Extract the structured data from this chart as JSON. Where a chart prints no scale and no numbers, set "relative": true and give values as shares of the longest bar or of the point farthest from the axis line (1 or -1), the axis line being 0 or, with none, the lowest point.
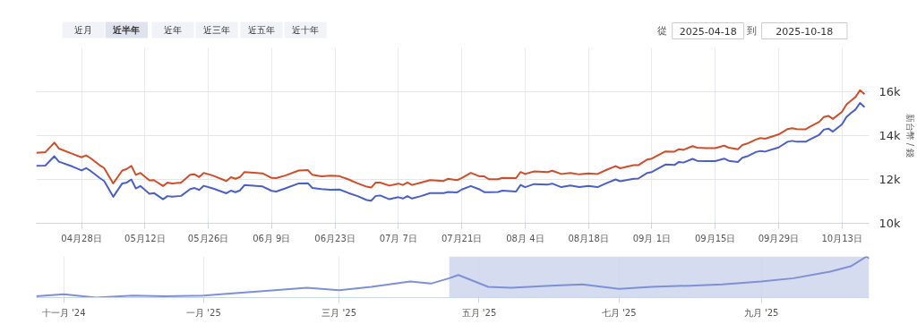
{
  "chart_data": [
    {
      "type": "line",
      "ylabel": "新台幣 / 錢",
      "annotations": [
        "近月",
        "近半年",
        "近年",
        "近三年",
        "近五年",
        "近十年",
        "從",
        "2025-04-18",
        "到",
        "2025-10-18"
      ],
      "x": [
        "2025-04-18",
        "2025-04-20",
        "2025-04-22",
        "2025-04-23",
        "2025-04-26",
        "2025-04-28",
        "2025-04-29",
        "2025-04-30",
        "2025-05-02",
        "2025-05-03",
        "2025-05-05",
        "2025-05-07",
        "2025-05-08",
        "2025-05-09",
        "2025-05-10",
        "2025-05-11",
        "2025-05-13",
        "2025-05-14",
        "2025-05-16",
        "2025-05-17",
        "2025-05-18",
        "2025-05-20",
        "2025-05-22",
        "2025-05-23",
        "2025-05-24",
        "2025-05-25",
        "2025-05-27",
        "2025-05-30",
        "2025-05-31",
        "2025-06-01",
        "2025-06-02",
        "2025-06-03",
        "2025-06-07",
        "2025-06-09",
        "2025-06-10",
        "2025-06-12",
        "2025-06-15",
        "2025-06-17",
        "2025-06-18",
        "2025-06-20",
        "2025-06-22",
        "2025-06-24",
        "2025-06-26",
        "2025-06-28",
        "2025-06-30",
        "2025-07-01",
        "2025-07-02",
        "2025-07-03",
        "2025-07-05",
        "2025-07-07",
        "2025-07-08",
        "2025-07-09",
        "2025-07-10",
        "2025-07-12",
        "2025-07-14",
        "2025-07-17",
        "2025-07-18",
        "2025-07-20",
        "2025-07-21",
        "2025-07-23",
        "2025-07-25",
        "2025-07-26",
        "2025-07-27",
        "2025-07-29",
        "2025-07-30",
        "2025-08-02",
        "2025-08-03",
        "2025-08-04",
        "2025-08-06",
        "2025-08-09",
        "2025-08-10",
        "2025-08-12",
        "2025-08-14",
        "2025-08-16",
        "2025-08-18",
        "2025-08-20",
        "2025-08-22",
        "2025-08-24",
        "2025-08-25",
        "2025-08-28",
        "2025-08-29",
        "2025-08-31",
        "2025-09-01",
        "2025-09-04",
        "2025-09-06",
        "2025-09-07",
        "2025-09-08",
        "2025-09-10",
        "2025-09-11",
        "2025-09-13",
        "2025-09-15",
        "2025-09-17",
        "2025-09-18",
        "2025-09-20",
        "2025-09-21",
        "2025-09-22",
        "2025-09-24",
        "2025-09-25",
        "2025-09-26",
        "2025-09-29",
        "2025-10-01",
        "2025-10-02",
        "2025-10-03",
        "2025-10-05",
        "2025-10-06",
        "2025-10-08",
        "2025-10-09",
        "2025-10-10",
        "2025-10-11",
        "2025-10-13",
        "2025-10-14",
        "2025-10-15",
        "2025-10-16",
        "2025-10-17",
        "2025-10-18"
      ],
      "series": [
        {
          "color": "#d14d2a",
          "values": [
            13210,
            13240,
            13680,
            13410,
            13170,
            13010,
            13100,
            12970,
            12650,
            12520,
            11820,
            12410,
            12480,
            12620,
            12210,
            12300,
            11960,
            11970,
            11700,
            11860,
            11820,
            11860,
            12210,
            12230,
            12110,
            12300,
            12180,
            11930,
            12100,
            12030,
            12110,
            12340,
            12280,
            12070,
            12060,
            12180,
            12410,
            12430,
            12210,
            12140,
            12170,
            12150,
            12000,
            11820,
            11670,
            11630,
            11860,
            11860,
            11720,
            11810,
            11750,
            11860,
            11750,
            11860,
            11970,
            11930,
            12030,
            11970,
            12070,
            12300,
            12140,
            12140,
            12010,
            12010,
            12070,
            12060,
            12340,
            12250,
            12370,
            12340,
            12400,
            12250,
            12300,
            12230,
            12280,
            12250,
            12440,
            12610,
            12510,
            12650,
            12650,
            12910,
            12950,
            13280,
            13270,
            13380,
            13350,
            13520,
            13450,
            13430,
            13430,
            13540,
            13450,
            13380,
            13570,
            13630,
            13820,
            13890,
            13860,
            14050,
            14300,
            14340,
            14300,
            14290,
            14410,
            14630,
            14850,
            14900,
            14760,
            15080,
            15420,
            15590,
            15760,
            16070,
            15890
          ]
        },
        {
          "color": "#4a5fc9",
          "values": [
            12620,
            12630,
            13060,
            12810,
            12590,
            12410,
            12520,
            12390,
            12070,
            11930,
            11210,
            11820,
            11860,
            12000,
            11590,
            11700,
            11350,
            11380,
            11100,
            11240,
            11210,
            11250,
            11560,
            11610,
            11520,
            11710,
            11590,
            11370,
            11490,
            11420,
            11500,
            11740,
            11680,
            11480,
            11450,
            11590,
            11820,
            11830,
            11610,
            11560,
            11530,
            11540,
            11380,
            11240,
            11060,
            11030,
            11250,
            11270,
            11100,
            11190,
            11130,
            11240,
            11130,
            11240,
            11380,
            11380,
            11430,
            11410,
            11540,
            11700,
            11540,
            11420,
            11420,
            11430,
            11490,
            11450,
            11750,
            11650,
            11790,
            11770,
            11810,
            11650,
            11720,
            11650,
            11700,
            11650,
            11830,
            12000,
            11920,
            12030,
            12040,
            12300,
            12340,
            12680,
            12660,
            12800,
            12770,
            12940,
            12850,
            12840,
            12840,
            12950,
            12850,
            12800,
            12990,
            13050,
            13250,
            13300,
            13270,
            13460,
            13720,
            13760,
            13720,
            13720,
            13830,
            14040,
            14270,
            14320,
            14180,
            14510,
            14850,
            15030,
            15190,
            15490,
            15300
          ]
        }
      ],
      "xlim": [
        "2025-04-18",
        "2025-10-19"
      ],
      "xticks": [
        {
          "value": "2025-04-28",
          "label": "04月28日"
        },
        {
          "value": "2025-05-12",
          "label": "05月12日"
        },
        {
          "value": "2025-05-26",
          "label": "05月26日"
        },
        {
          "value": "2025-06-09",
          "label": "06月 9日"
        },
        {
          "value": "2025-06-23",
          "label": "06月23日"
        },
        {
          "value": "2025-07-07",
          "label": "07月 7日"
        },
        {
          "value": "2025-07-21",
          "label": "07月21日"
        },
        {
          "value": "2025-08-04",
          "label": "08月 4日"
        },
        {
          "value": "2025-08-18",
          "label": "08月18日"
        },
        {
          "value": "2025-09-01",
          "label": "09月 1日"
        },
        {
          "value": "2025-09-15",
          "label": "09月15日"
        },
        {
          "value": "2025-09-29",
          "label": "09月29日"
        },
        {
          "value": "2025-10-13",
          "label": "10月13日"
        }
      ],
      "ylim": [
        10000,
        18000
      ],
      "yticks": [
        {
          "value": 10000,
          "label": "10k"
        },
        {
          "value": 12000,
          "label": "12k"
        },
        {
          "value": 14000,
          "label": "14k"
        },
        {
          "value": 16000,
          "label": "16k"
        }
      ],
      "grid": true,
      "marker": "none",
      "line_style": "solid"
    },
    {
      "type": "line",
      "relative": true,
      "tick_labels": "x",
      "x": [
        "2024-10-20",
        "2024-11-01",
        "2024-11-15",
        "2024-12-01",
        "2024-12-15",
        "2025-01-01",
        "2025-01-15",
        "2025-02-01",
        "2025-02-15",
        "2025-03-01",
        "2025-03-15",
        "2025-04-01",
        "2025-04-10",
        "2025-04-18",
        "2025-04-22",
        "2025-05-05",
        "2025-05-15",
        "2025-06-01",
        "2025-06-15",
        "2025-07-01",
        "2025-07-15",
        "2025-08-01",
        "2025-08-15",
        "2025-09-01",
        "2025-09-15",
        "2025-10-01",
        "2025-10-10",
        "2025-10-17",
        "2025-10-18"
      ],
      "series": [
        {
          "color": "#7f90d6",
          "values": [
            0.03,
            0.08,
            0,
            0.05,
            0.03,
            0.05,
            0.11,
            0.18,
            0.24,
            0.18,
            0.26,
            0.39,
            0.34,
            0.47,
            0.55,
            0.26,
            0.24,
            0.29,
            0.32,
            0.21,
            0.26,
            0.29,
            0.32,
            0.39,
            0.47,
            0.63,
            0.76,
            1,
            0.95
          ]
        }
      ],
      "xlim": [
        "2024-10-20",
        "2025-10-18"
      ],
      "xticks": [
        {
          "value": "2024-11-01",
          "label": "十一月 '24"
        },
        {
          "value": "2025-01-01",
          "label": "一月 '25"
        },
        {
          "value": "2025-03-01",
          "label": "三月 '25"
        },
        {
          "value": "2025-05-01",
          "label": "五月 '25"
        },
        {
          "value": "2025-07-01",
          "label": "七月 '25"
        },
        {
          "value": "2025-09-01",
          "label": "九月 '25"
        }
      ],
      "bands": [
        {
          "axis": "x",
          "from": "2025-04-18",
          "to": "2025-10-18",
          "color": "#ccd3ec"
        }
      ],
      "grid": "x",
      "marker": "none",
      "line_style": "solid"
    }
  ]
}
